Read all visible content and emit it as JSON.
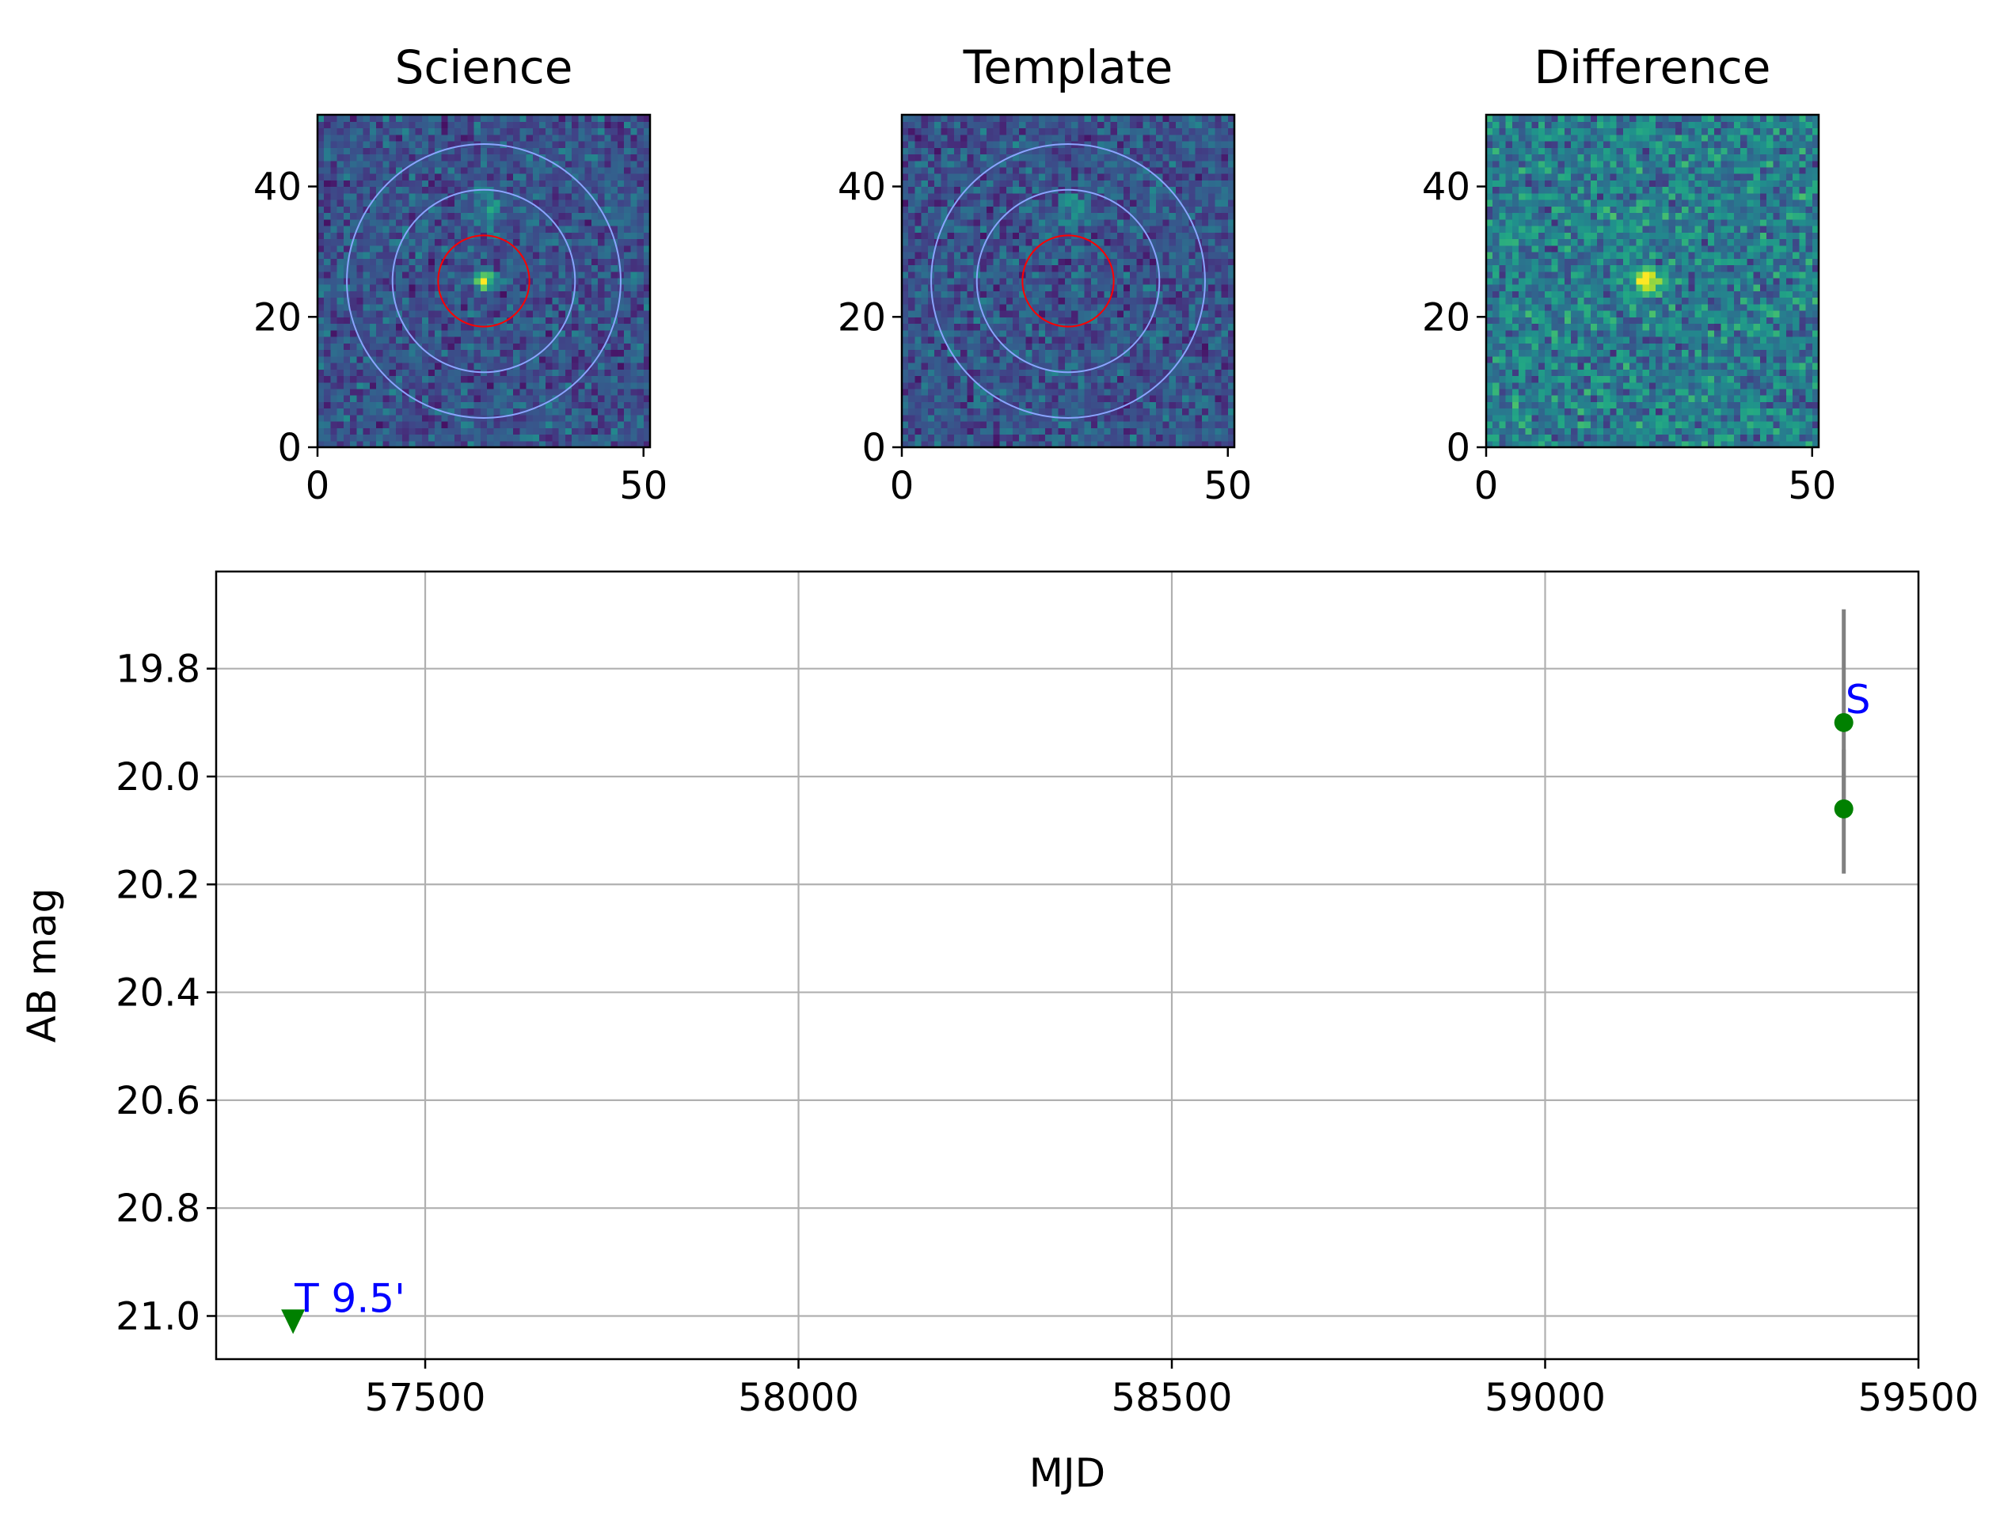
{
  "chart_data": [
    {
      "type": "heatmap",
      "title": "Science",
      "xticks": [
        0,
        50
      ],
      "yticks": [
        0,
        20,
        40
      ],
      "xlim": [
        0,
        51
      ],
      "ylim": [
        0,
        51
      ],
      "colormap": "viridis",
      "peak": {
        "x": 25,
        "y": 25
      },
      "extended_source": {
        "x": 26,
        "y": 36
      },
      "circles": [
        {
          "color": "#ff0000",
          "radius": 7
        },
        {
          "color": "#8aa4ff",
          "radius": 14
        },
        {
          "color": "#8aa4ff",
          "radius": 21
        }
      ]
    },
    {
      "type": "heatmap",
      "title": "Template",
      "xticks": [
        0,
        50
      ],
      "yticks": [
        0,
        20,
        40
      ],
      "xlim": [
        0,
        51
      ],
      "ylim": [
        0,
        51
      ],
      "colormap": "viridis",
      "extended_source": {
        "x": 26,
        "y": 36
      },
      "circles": [
        {
          "color": "#ff0000",
          "radius": 7
        },
        {
          "color": "#8aa4ff",
          "radius": 14
        },
        {
          "color": "#8aa4ff",
          "radius": 21
        }
      ]
    },
    {
      "type": "heatmap",
      "title": "Difference",
      "xticks": [
        0,
        50
      ],
      "yticks": [
        0,
        20,
        40
      ],
      "xlim": [
        0,
        51
      ],
      "ylim": [
        0,
        51
      ],
      "colormap": "viridis",
      "peak": {
        "x": 24,
        "y": 25
      },
      "circles": []
    },
    {
      "type": "scatter",
      "xlabel": "MJD",
      "ylabel": "AB mag",
      "xlim": [
        57220,
        59500
      ],
      "ylim": [
        21.08,
        19.62
      ],
      "y_inverted": true,
      "grid": true,
      "xticks": [
        57500,
        58000,
        58500,
        59000,
        59500
      ],
      "yticks": [
        19.8,
        20.0,
        20.2,
        20.4,
        20.6,
        20.8,
        21.0
      ],
      "points": [
        {
          "x": 59400,
          "y": 19.9,
          "yerr_low": 19.69,
          "yerr_high": 20.06,
          "marker": "circle",
          "color": "#008000",
          "label": "S"
        },
        {
          "x": 59400,
          "y": 20.06,
          "yerr_low": 19.95,
          "yerr_high": 20.18,
          "marker": "circle",
          "color": "#008000",
          "label": ""
        },
        {
          "x": 57323,
          "y": 21.01,
          "marker": "triangle-down",
          "color": "#008000",
          "label": "T 9.5'"
        }
      ],
      "errorbar_color": "#808080",
      "label_color": "#0000ff"
    }
  ]
}
